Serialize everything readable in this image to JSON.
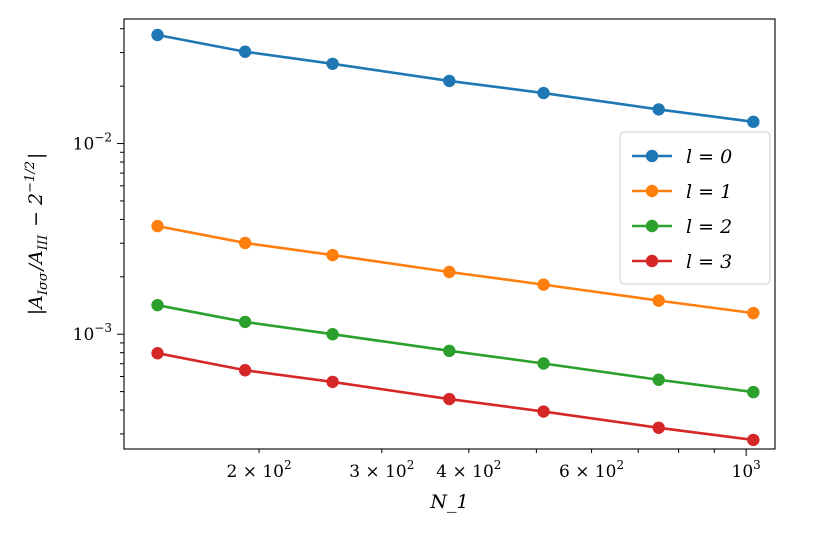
{
  "chart_data": {
    "type": "line",
    "xscale": "log",
    "yscale": "log",
    "xlabel": "N_1",
    "ylabel": "|A_{Iσσ}/A_{III} − 2^{−1/2}|",
    "xlim": [
      128,
      1100
    ],
    "ylim": [
      0.00025,
      0.045
    ],
    "x": [
      143,
      191,
      255,
      375,
      512,
      749,
      1024
    ],
    "x_ticks": [
      {
        "value": 200,
        "mantissa": "2",
        "exp": "2"
      },
      {
        "value": 300,
        "mantissa": "3",
        "exp": "2"
      },
      {
        "value": 400,
        "mantissa": "4",
        "exp": "2"
      },
      {
        "value": 600,
        "mantissa": "6",
        "exp": "2"
      },
      {
        "value": 1000,
        "mantissa": "",
        "exp": "3"
      }
    ],
    "y_ticks": [
      {
        "value": 0.001,
        "exp": "−3"
      },
      {
        "value": 0.01,
        "exp": "−2"
      }
    ],
    "legend_position": "right",
    "grid": false,
    "series": [
      {
        "name": "l = 0",
        "color": "#1f77b4",
        "values": [
          0.0371,
          0.0303,
          0.0262,
          0.0213,
          0.0184,
          0.0151,
          0.013
        ]
      },
      {
        "name": "l = 1",
        "color": "#ff7f0e",
        "values": [
          0.00369,
          0.00301,
          0.0026,
          0.00212,
          0.00182,
          0.0015,
          0.00129
        ]
      },
      {
        "name": "l = 2",
        "color": "#2ca02c",
        "values": [
          0.00142,
          0.00116,
          0.001,
          0.000818,
          0.000702,
          0.000577,
          0.000497
        ]
      },
      {
        "name": "l = 3",
        "color": "#d62728",
        "values": [
          0.000795,
          0.000647,
          0.000562,
          0.000457,
          0.000393,
          0.000323,
          0.000279
        ]
      }
    ]
  }
}
